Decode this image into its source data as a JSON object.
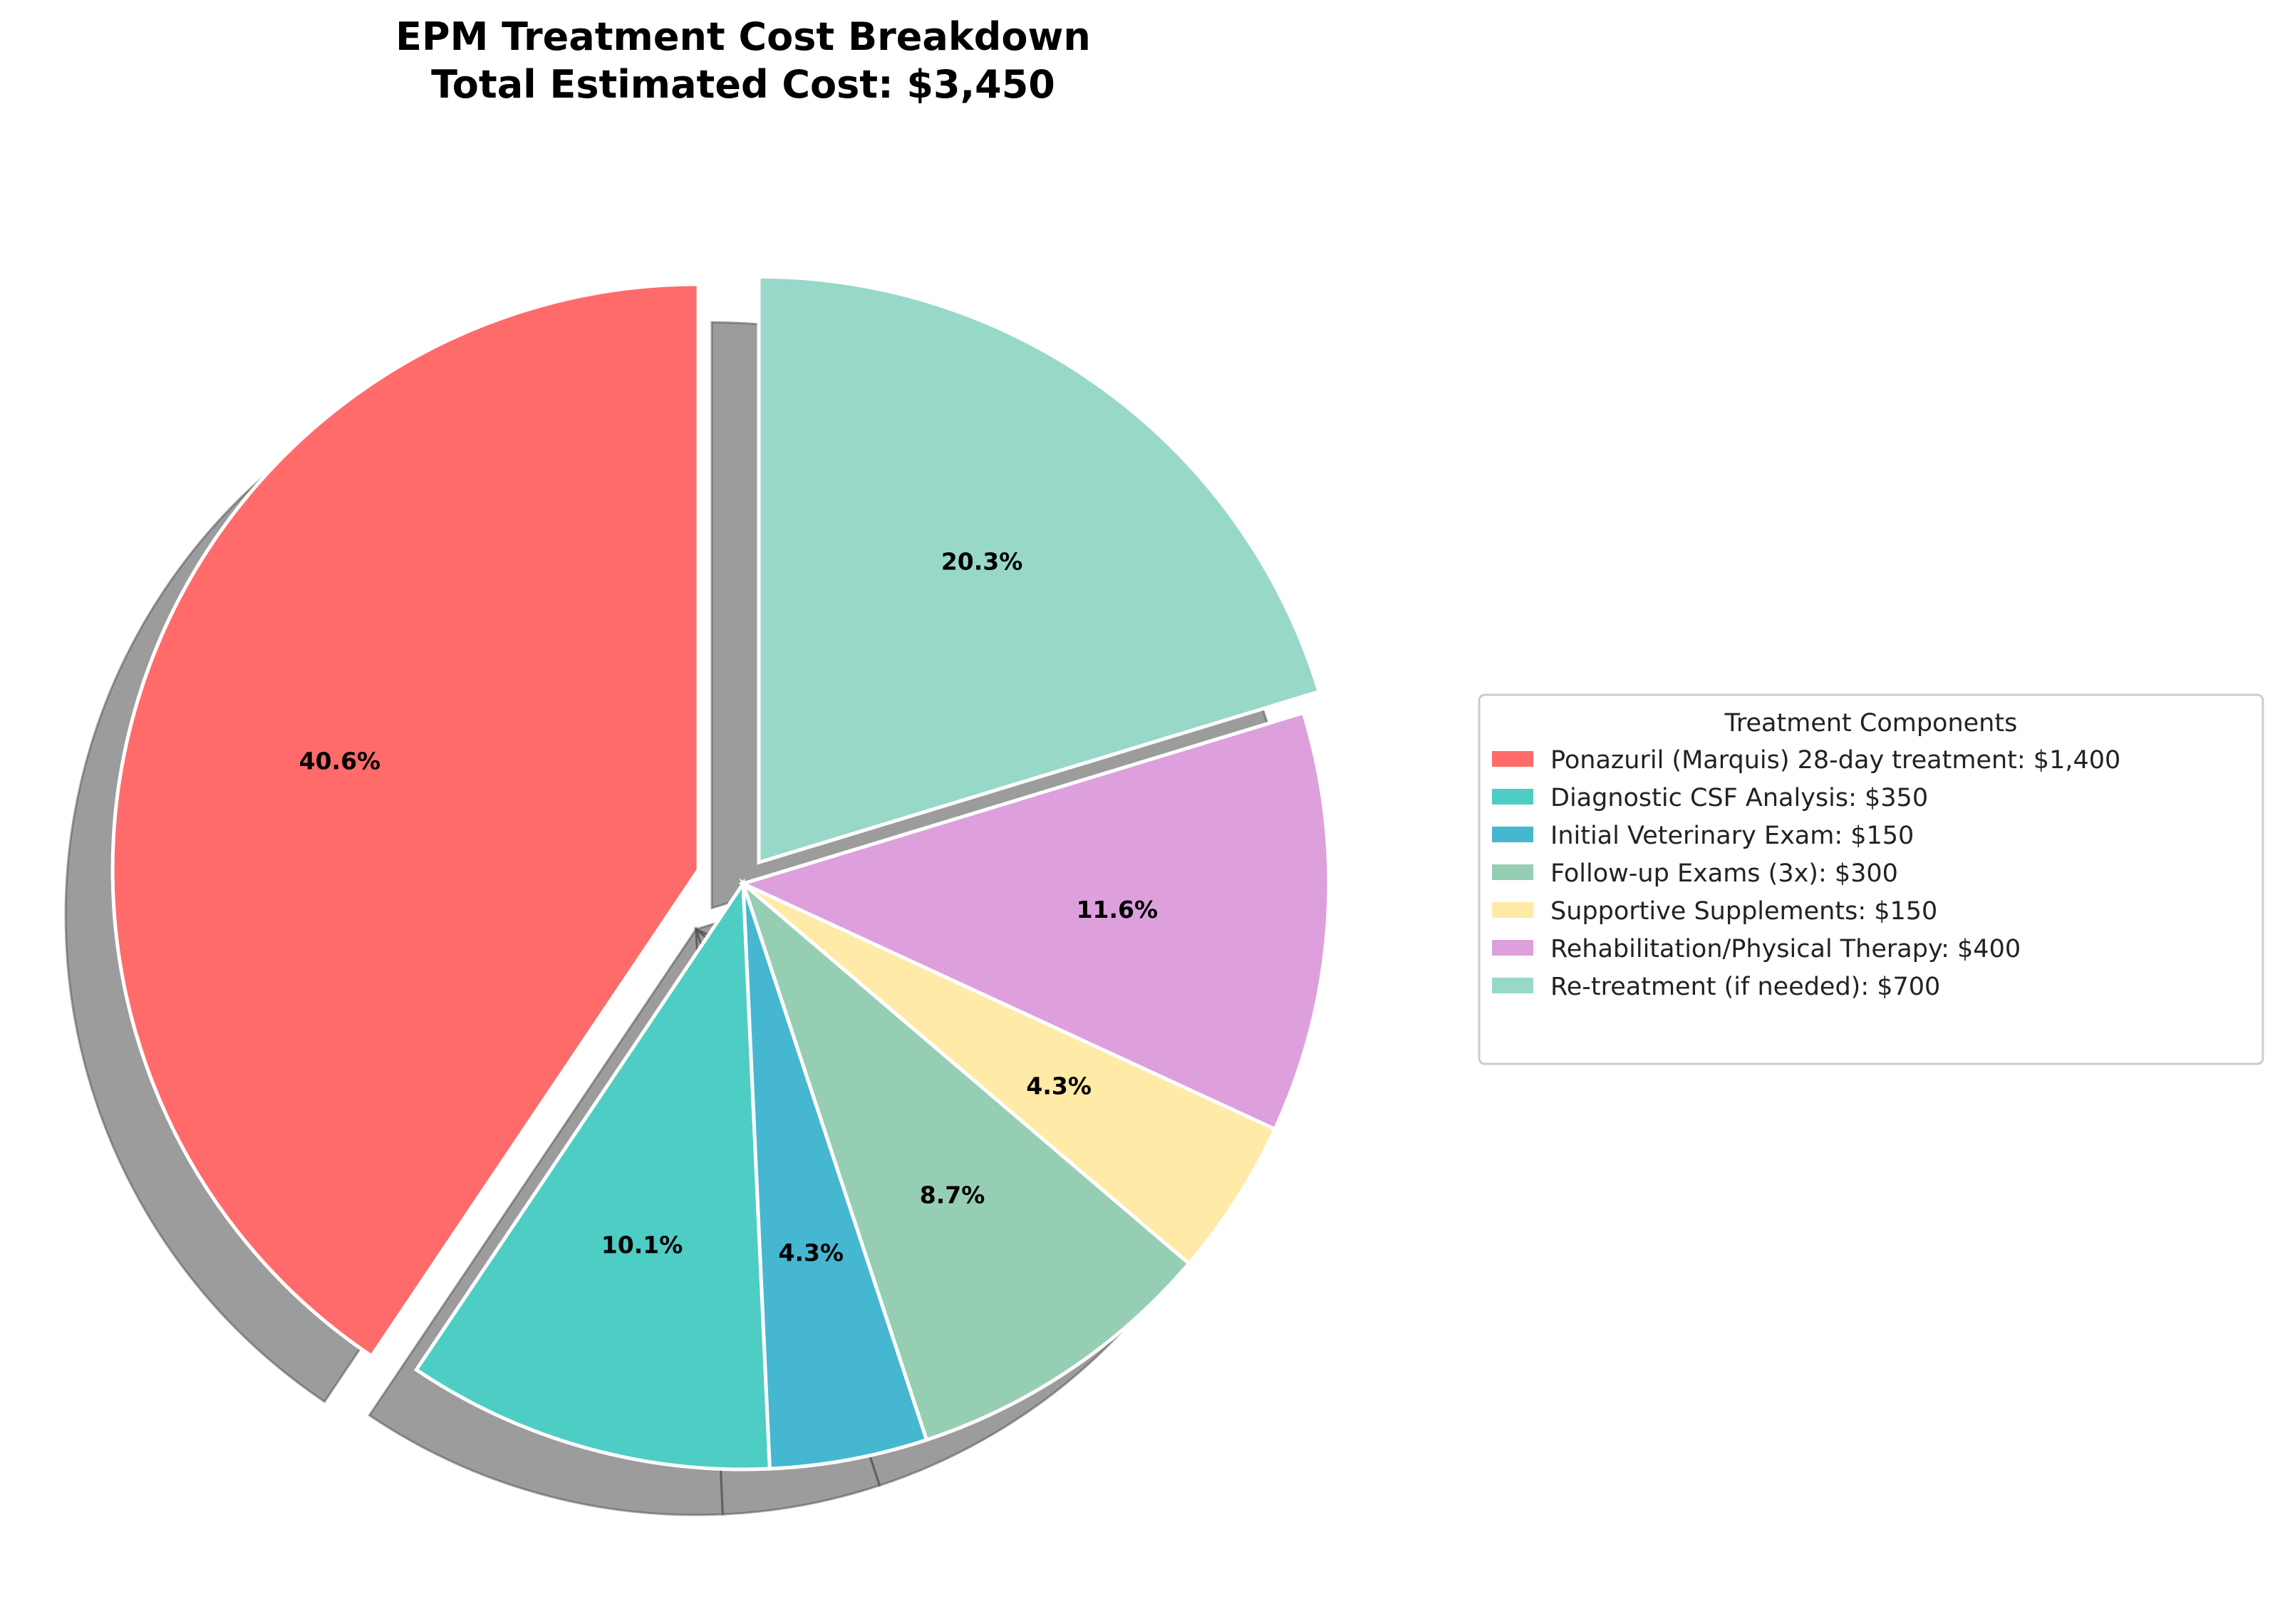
{
  "chart_data": {
    "type": "pie",
    "title": "EPM Treatment Cost Breakdown",
    "subtitle": "Total Estimated Cost: $3,450",
    "start_angle_deg": 90,
    "direction": "counterclockwise",
    "legend": {
      "title": "Treatment Components",
      "placement": "right"
    },
    "slices": [
      {
        "label": "Ponazuril (Marquis) 28-day treatment",
        "value": 1400,
        "legend_text": "Ponazuril (Marquis) 28-day treatment: $1,400",
        "pct_label": "40.6%",
        "color": "#FF6B6B",
        "exploded": true
      },
      {
        "label": "Diagnostic CSF Analysis",
        "value": 350,
        "legend_text": "Diagnostic CSF Analysis: $350",
        "pct_label": "10.1%",
        "color": "#4ECDC4",
        "exploded": false
      },
      {
        "label": "Initial Veterinary Exam",
        "value": 150,
        "legend_text": "Initial Veterinary Exam: $150",
        "pct_label": "4.3%",
        "color": "#45B7D1",
        "exploded": false
      },
      {
        "label": "Follow-up Exams (3x)",
        "value": 300,
        "legend_text": "Follow-up Exams (3x): $300",
        "pct_label": "8.7%",
        "color": "#96CEB4",
        "exploded": false
      },
      {
        "label": "Supportive Supplements",
        "value": 150,
        "legend_text": "Supportive Supplements: $150",
        "pct_label": "4.3%",
        "color": "#FFEAA7",
        "exploded": false
      },
      {
        "label": "Rehabilitation/Physical Therapy",
        "value": 400,
        "legend_text": "Rehabilitation/Physical Therapy: $400",
        "pct_label": "11.6%",
        "color": "#DDA0DD",
        "exploded": false
      },
      {
        "label": "Re-treatment (if needed)",
        "value": 700,
        "legend_text": "Re-treatment (if needed): $700",
        "pct_label": "20.3%",
        "color": "#98D8C8",
        "exploded": true
      }
    ]
  }
}
